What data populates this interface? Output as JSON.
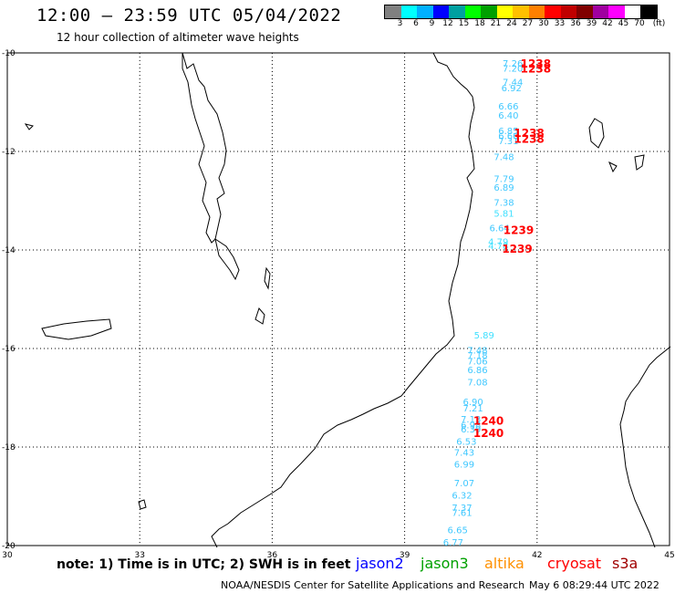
{
  "header": {
    "title": "12:00 – 23:59 UTC 05/04/2022",
    "subtitle": "12 hour collection of altimeter wave heights"
  },
  "scale": {
    "colors": [
      "#808080",
      "#00ffff",
      "#00b0ff",
      "#0000ff",
      "#00a0a0",
      "#00ff00",
      "#00a000",
      "#ffff00",
      "#ffc000",
      "#ff8000",
      "#ff0000",
      "#c00000",
      "#800000",
      "#a000a0",
      "#ff00ff",
      "#ffffff",
      "#000000"
    ],
    "labels": [
      "3",
      "6",
      "9",
      "12",
      "15",
      "18",
      "21",
      "24",
      "27",
      "30",
      "33",
      "36",
      "39",
      "42",
      "45",
      "70",
      "(ft)"
    ]
  },
  "axes": {
    "x_ticks": [
      "30",
      "33",
      "36",
      "39",
      "42",
      "45"
    ],
    "y_ticks": [
      "-10",
      "-12",
      "-14",
      "-16",
      "-18",
      "-20"
    ]
  },
  "observations": [
    {
      "lon": 41.45,
      "lat": -10.28,
      "value": "7.26",
      "color": "#40c8ff"
    },
    {
      "lon": 41.45,
      "lat": -10.38,
      "value": "7.20",
      "color": "#40c8ff"
    },
    {
      "lon": 41.45,
      "lat": -10.66,
      "value": "7.44",
      "color": "#40c8ff"
    },
    {
      "lon": 41.42,
      "lat": -10.78,
      "value": "6.92",
      "color": "#40c8ff"
    },
    {
      "lon": 41.35,
      "lat": -11.15,
      "value": "6.66",
      "color": "#40c8ff"
    },
    {
      "lon": 41.35,
      "lat": -11.33,
      "value": "6.40",
      "color": "#40c8ff"
    },
    {
      "lon": 41.35,
      "lat": -11.65,
      "value": "6.85",
      "color": "#40c8ff"
    },
    {
      "lon": 41.35,
      "lat": -11.75,
      "value": "6.66",
      "color": "#40c8ff"
    },
    {
      "lon": 41.35,
      "lat": -11.85,
      "value": "7.31",
      "color": "#40c8ff"
    },
    {
      "lon": 41.25,
      "lat": -12.18,
      "value": "7.48",
      "color": "#40c8ff"
    },
    {
      "lon": 41.25,
      "lat": -12.62,
      "value": "7.79",
      "color": "#40c8ff"
    },
    {
      "lon": 41.25,
      "lat": -12.8,
      "value": "6.89",
      "color": "#40c8ff"
    },
    {
      "lon": 41.25,
      "lat": -13.1,
      "value": "7.38",
      "color": "#40c8ff"
    },
    {
      "lon": 41.25,
      "lat": -13.32,
      "value": "5.81",
      "color": "#40e0ff"
    },
    {
      "lon": 41.15,
      "lat": -13.62,
      "value": "6.64",
      "color": "#40c8ff"
    },
    {
      "lon": 41.12,
      "lat": -13.9,
      "value": "4.79",
      "color": "#40e0ff"
    },
    {
      "lon": 41.12,
      "lat": -13.98,
      "value": "4.78",
      "color": "#40e0ff"
    },
    {
      "lon": 40.8,
      "lat": -15.8,
      "value": "5.89",
      "color": "#40e0ff"
    },
    {
      "lon": 40.65,
      "lat": -16.1,
      "value": "7.48",
      "color": "#40c8ff"
    },
    {
      "lon": 40.65,
      "lat": -16.2,
      "value": "7.18",
      "color": "#40c8ff"
    },
    {
      "lon": 40.65,
      "lat": -16.32,
      "value": "7.06",
      "color": "#40c8ff"
    },
    {
      "lon": 40.65,
      "lat": -16.5,
      "value": "6.86",
      "color": "#40c8ff"
    },
    {
      "lon": 40.65,
      "lat": -16.75,
      "value": "7.08",
      "color": "#40c8ff"
    },
    {
      "lon": 40.55,
      "lat": -17.15,
      "value": "6.90",
      "color": "#40c8ff"
    },
    {
      "lon": 40.55,
      "lat": -17.28,
      "value": "7.21",
      "color": "#40c8ff"
    },
    {
      "lon": 40.5,
      "lat": -17.5,
      "value": "7.13",
      "color": "#40c8ff"
    },
    {
      "lon": 40.5,
      "lat": -17.62,
      "value": "6.98",
      "color": "#40c8ff"
    },
    {
      "lon": 40.5,
      "lat": -17.7,
      "value": "6.39",
      "color": "#40c8ff"
    },
    {
      "lon": 40.4,
      "lat": -17.95,
      "value": "6.53",
      "color": "#40c8ff"
    },
    {
      "lon": 40.35,
      "lat": -18.18,
      "value": "7.43",
      "color": "#40c8ff"
    },
    {
      "lon": 40.35,
      "lat": -18.42,
      "value": "6.99",
      "color": "#40c8ff"
    },
    {
      "lon": 40.35,
      "lat": -18.8,
      "value": "7.07",
      "color": "#40c8ff"
    },
    {
      "lon": 40.3,
      "lat": -19.05,
      "value": "6.32",
      "color": "#40c8ff"
    },
    {
      "lon": 40.3,
      "lat": -19.3,
      "value": "7.37",
      "color": "#40c8ff"
    },
    {
      "lon": 40.3,
      "lat": -19.4,
      "value": "7.61",
      "color": "#40c8ff"
    },
    {
      "lon": 40.2,
      "lat": -19.75,
      "value": "6.65",
      "color": "#40c8ff"
    },
    {
      "lon": 40.1,
      "lat": -20.0,
      "value": "6.77",
      "color": "#40c8ff"
    }
  ],
  "pass_times": [
    {
      "lon": 41.97,
      "lat": -10.3,
      "value": "1238",
      "color": "#ff0000"
    },
    {
      "lon": 41.97,
      "lat": -10.4,
      "value": "1238",
      "color": "#ff0000"
    },
    {
      "lon": 41.82,
      "lat": -11.7,
      "value": "1238",
      "color": "#ff0000"
    },
    {
      "lon": 41.82,
      "lat": -11.82,
      "value": "1238",
      "color": "#ff0000"
    },
    {
      "lon": 41.58,
      "lat": -13.68,
      "value": "1239",
      "color": "#ff0000"
    },
    {
      "lon": 41.55,
      "lat": -14.06,
      "value": "1239",
      "color": "#ff0000"
    },
    {
      "lon": 40.9,
      "lat": -17.55,
      "value": "1240",
      "color": "#ff0000"
    },
    {
      "lon": 40.9,
      "lat": -17.8,
      "value": "1240",
      "color": "#ff0000"
    }
  ],
  "footer": {
    "note": "note:  1) Time is in UTC;  2) SWH is in feet",
    "satellites": [
      {
        "name": "jason2",
        "color": "#0000ff"
      },
      {
        "name": "jason3",
        "color": "#00a000"
      },
      {
        "name": "altika",
        "color": "#ff9000"
      },
      {
        "name": "cryosat",
        "color": "#ff0000"
      },
      {
        "name": "s3a",
        "color": "#a00000"
      }
    ],
    "credit": "NOAA/NESDIS Center for Satellite Applications and Research",
    "timestamp": "May  6 08:29:44 UTC 2022"
  }
}
